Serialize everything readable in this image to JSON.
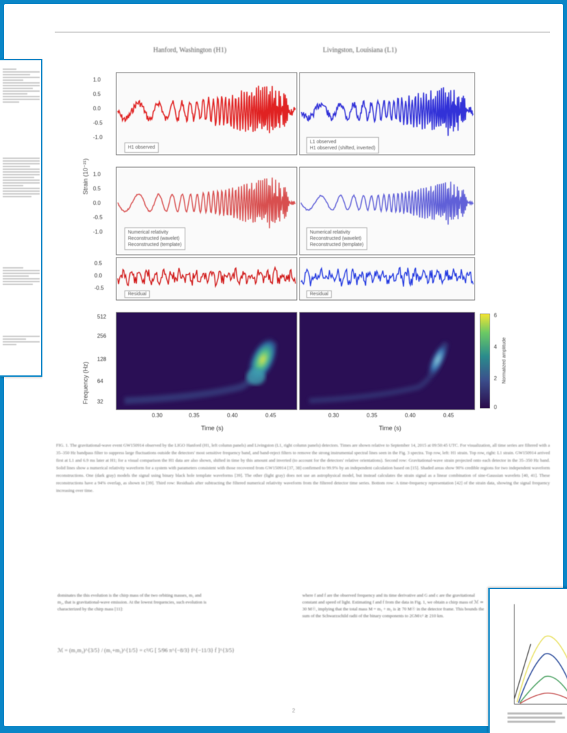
{
  "figure": {
    "left_column_title": "Hanford, Washington (H1)",
    "right_column_title": "Livingston, Louisiana (L1)",
    "strain_axis_label": "Strain (10⁻²¹)",
    "frequency_axis_label": "Frequency (Hz)",
    "colorbar_label": "Normalized amplitude",
    "x_axis_label_left": "Time (s)",
    "x_axis_label_right": "Time (s)",
    "row1_yticks": [
      "1.0",
      "0.5",
      "0.0",
      "-0.5",
      "-1.0"
    ],
    "row2_yticks": [
      "1.0",
      "0.5",
      "0.0",
      "-0.5",
      "-1.0"
    ],
    "row3_yticks": [
      "0.5",
      "0.0",
      "-0.5"
    ],
    "row4_yticks": [
      "512",
      "256",
      "128",
      "64",
      "32"
    ],
    "colorbar_ticks": [
      "6",
      "4",
      "2",
      "0"
    ],
    "x_ticks": [
      "0.30",
      "0.35",
      "0.40",
      "0.45"
    ],
    "legend_h1_row1": "H1 observed",
    "legend_l1_row1_a": "L1 observed",
    "legend_l1_row1_b": "H1 observed (shifted, inverted)",
    "legend_row2_a": "Numerical relativity",
    "legend_row2_b": "Reconstructed (wavelet)",
    "legend_row2_c": "Reconstructed (template)",
    "legend_row3": "Residual"
  },
  "caption": "FIG. 1. The gravitational-wave event GW150914 observed by the LIGO Hanford (H1, left column panels) and Livingston (L1, right column panels) detectors. Times are shown relative to September 14, 2015 at 09:50:45 UTC. For visualization, all time series are filtered with a 35–350 Hz bandpass filter to suppress large fluctuations outside the detectors' most sensitive frequency band, and band-reject filters to remove the strong instrumental spectral lines seen in the Fig. 3 spectra. Top row, left: H1 strain. Top row, right: L1 strain. GW150914 arrived first at L1 and 6.9 ms later at H1; for a visual comparison the H1 data are also shown, shifted in time by this amount and inverted (to account for the detectors' relative orientations). Second row: Gravitational-wave strain projected onto each detector in the 35–350 Hz band. Solid lines show a numerical relativity waveform for a system with parameters consistent with those recovered from GW150914 [37, 38] confirmed to 99.9% by an independent calculation based on [15]. Shaded areas show 90% credible regions for two independent waveform reconstructions. One (dark gray) models the signal using binary black hole template waveforms [39]. The other (light gray) does not use an astrophysical model, but instead calculates the strain signal as a linear combination of sine-Gaussian wavelets [40, 41]. These reconstructions have a 94% overlap, as shown in [39]. Third row: Residuals after subtracting the filtered numerical relativity waveform from the filtered detector time series. Bottom row: A time-frequency representation [42] of the strain data, showing the signal frequency increasing over time.",
  "body_left": "dominates the this evolution is the chirp mass of the two orbiting masses, m₁ and m₂, that is gravitational-wave emission. At the lowest frequencies, such evolution is characterized by the chirp mass [11]:",
  "body_right": "where f and ḟ are the observed frequency and its time derivative and G and c are the gravitational constant and speed of light. Estimating f and ḟ from the data in Fig. 1, we obtain a chirp mass of ℳ ≃ 30 M☉, implying that the total mass M = m₁ + m₂ is ≳ 70 M☉ in the detector frame. This bounds the sum of the Schwarzschild radii of the binary components to 2GM/c² ≳ 210 km.",
  "equation": "ℳ = (m₁m₂)^{3/5} / (m₁+m₂)^{1/5} = c³/G [ 5/96 π^{−8/3} f^{−11/3} ḟ ]^{3/5}",
  "page_number": "2",
  "colors": {
    "background": "#0a86c7",
    "h1_trace": "#e02020",
    "l1_trace": "#3030d8",
    "residual_h1": "#d01818",
    "residual_l1": "#2038e0"
  }
}
